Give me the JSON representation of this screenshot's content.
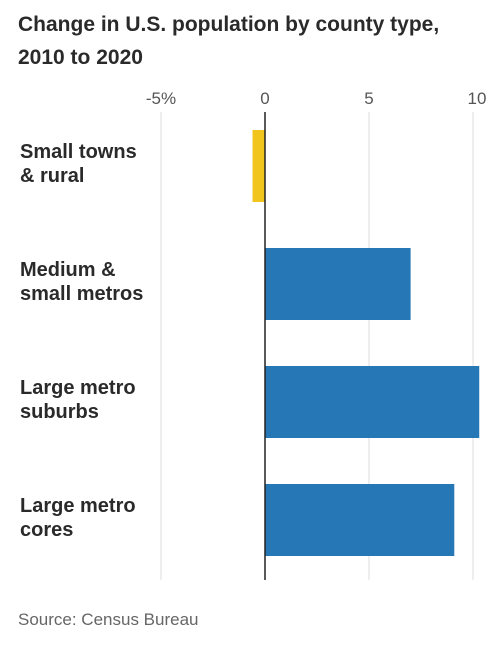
{
  "chart_data": {
    "type": "bar",
    "orientation": "horizontal",
    "title": "Change in U.S. population by county type, 2010 to 2020",
    "categories": [
      [
        "Small towns",
        "& rural"
      ],
      [
        "Medium &",
        "small metros"
      ],
      [
        "Large metro",
        "suburbs"
      ],
      [
        "Large metro",
        "cores"
      ]
    ],
    "values": [
      -0.6,
      7.0,
      10.3,
      9.1
    ],
    "bar_colors": [
      "#f2c51c",
      "#2677b5",
      "#2677b5",
      "#2677b5"
    ],
    "xlim": [
      -5,
      11.2
    ],
    "xticks": [
      -5,
      0,
      5,
      10
    ],
    "xtick_labels": [
      "-5%",
      "0",
      "5",
      "10"
    ],
    "grid": true
  },
  "source": "Source: Census Bureau"
}
